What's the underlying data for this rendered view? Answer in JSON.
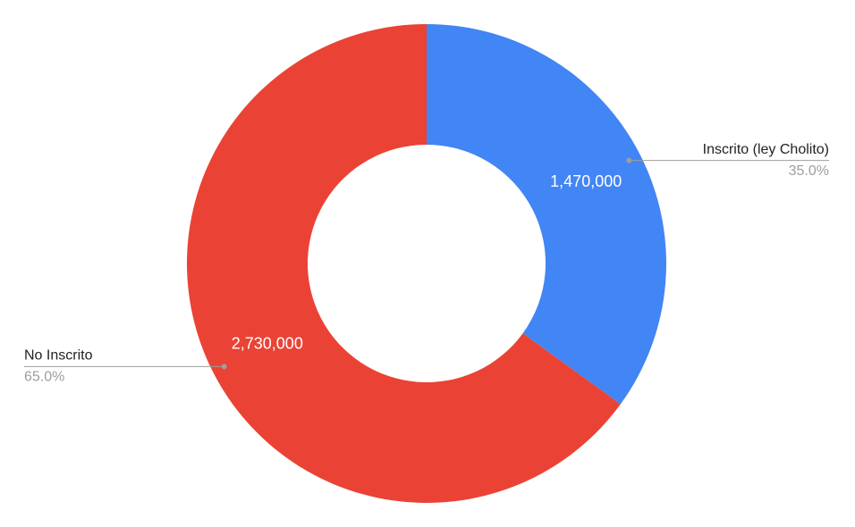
{
  "chart_data": {
    "type": "donut",
    "categories": [
      "Inscrito (ley Cholito)",
      "No Inscrito"
    ],
    "values": [
      1470000,
      2730000
    ],
    "value_labels": [
      "1,470,000",
      "2,730,000"
    ],
    "percent_labels": [
      "35.0%",
      "65.0%"
    ],
    "colors": [
      "#4285f4",
      "#ea4335"
    ]
  }
}
